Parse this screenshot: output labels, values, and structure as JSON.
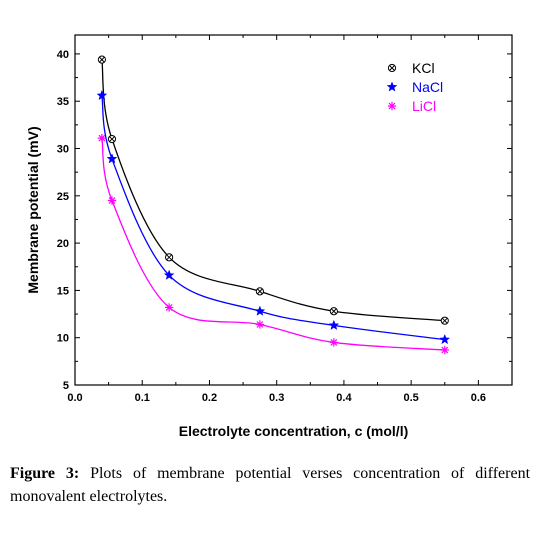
{
  "chart_data": {
    "type": "line",
    "xlabel": "Electrolyte concentration, c (mol/l)",
    "ylabel": "Membrane potential (mV)",
    "xlim": [
      0.0,
      0.65
    ],
    "ylim": [
      5,
      42
    ],
    "xticks": [
      "0.0",
      "0.1",
      "0.2",
      "0.3",
      "0.4",
      "0.5",
      "0.6"
    ],
    "yticks": [
      "5",
      "10",
      "15",
      "20",
      "25",
      "30",
      "35",
      "40"
    ],
    "legend_position": "top-right",
    "grid": false,
    "series": [
      {
        "name": "KCl",
        "marker": "circle-x",
        "color": "#000000",
        "x": [
          0.04,
          0.055,
          0.14,
          0.275,
          0.385,
          0.55
        ],
        "y": [
          39.4,
          31.0,
          18.5,
          14.9,
          12.8,
          11.8
        ]
      },
      {
        "name": "NaCl",
        "marker": "star",
        "color": "#0000ff",
        "x": [
          0.04,
          0.055,
          0.14,
          0.275,
          0.385,
          0.55
        ],
        "y": [
          35.6,
          28.9,
          16.6,
          12.8,
          11.3,
          9.8
        ]
      },
      {
        "name": "LiCl",
        "marker": "asterisk",
        "color": "#ff00ff",
        "x": [
          0.04,
          0.055,
          0.14,
          0.275,
          0.385,
          0.55
        ],
        "y": [
          31.1,
          24.5,
          13.2,
          11.4,
          9.5,
          8.7
        ]
      }
    ]
  },
  "caption": {
    "label": "Figure 3:",
    "text": "Plots of membrane potential verses concentration of different monovalent electrolytes."
  }
}
